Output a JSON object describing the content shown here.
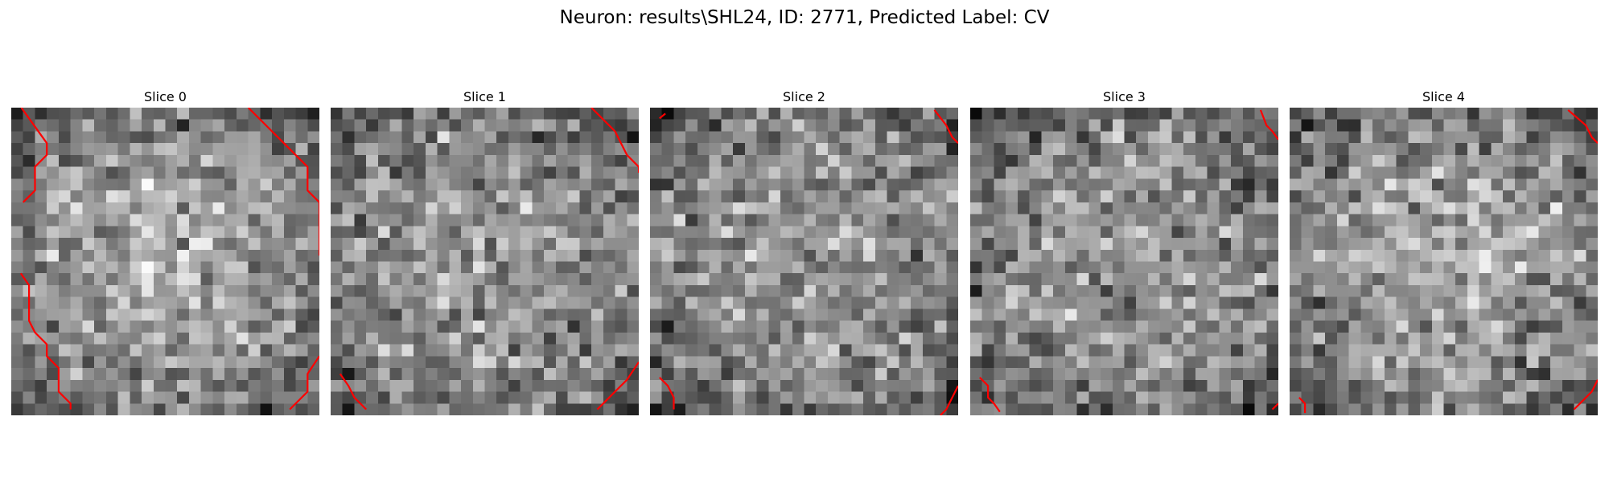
{
  "figure": {
    "title": "Neuron: results\\SHL24, ID: 2771, Predicted Label: CV"
  },
  "slices": [
    {
      "title": "Slice 0",
      "grid": 26,
      "brightness": "bright-center",
      "seed": 11,
      "contours": [
        [
          [
            0.35,
            -0.5
          ],
          [
            2.5,
            2.5
          ],
          [
            2.5,
            3.5
          ],
          [
            1.5,
            4.5
          ],
          [
            1.5,
            6.5
          ],
          [
            0.5,
            7.5
          ],
          [
            0.5,
            7.5
          ]
        ],
        [
          [
            19.5,
            -0.5
          ],
          [
            21.5,
            1.5
          ],
          [
            22.5,
            2.5
          ],
          [
            23.5,
            3.5
          ],
          [
            24.5,
            4.5
          ],
          [
            24.5,
            5.5
          ],
          [
            24.5,
            6.5
          ],
          [
            25.5,
            7.5
          ],
          [
            25.5,
            11.5
          ],
          [
            26.0,
            12.0
          ]
        ],
        [
          [
            0.3,
            13.5
          ],
          [
            1.0,
            14.5
          ],
          [
            1.0,
            17.5
          ],
          [
            1.5,
            18.5
          ],
          [
            2.5,
            19.5
          ],
          [
            2.5,
            20.5
          ],
          [
            3.5,
            21.5
          ],
          [
            3.5,
            23.5
          ],
          [
            4.5,
            24.5
          ],
          [
            4.5,
            25.0
          ]
        ],
        [
          [
            25.5,
            20.5
          ],
          [
            24.5,
            22.0
          ],
          [
            24.5,
            23.5
          ],
          [
            23.0,
            25.0
          ]
        ]
      ]
    },
    {
      "title": "Slice 1",
      "grid": 26,
      "brightness": "uniform",
      "seed": 23,
      "contours": [
        [
          [
            21.5,
            -0.5
          ],
          [
            23.5,
            1.5
          ],
          [
            24.0,
            2.5
          ],
          [
            24.5,
            3.5
          ],
          [
            25.5,
            4.5
          ],
          [
            26.0,
            5.0
          ]
        ],
        [
          [
            0.3,
            22.0
          ],
          [
            1.0,
            23.0
          ],
          [
            1.5,
            24.0
          ],
          [
            2.5,
            25.0
          ]
        ],
        [
          [
            26.0,
            21.0
          ],
          [
            24.5,
            22.5
          ],
          [
            23.5,
            23.5
          ],
          [
            22.5,
            24.5
          ],
          [
            22.0,
            25.0
          ]
        ]
      ]
    },
    {
      "title": "Slice 2",
      "grid": 26,
      "brightness": "uniform",
      "seed": 37,
      "contours": [
        [
          [
            23.5,
            -0.3
          ],
          [
            24.5,
            1.0
          ],
          [
            25.0,
            2.0
          ],
          [
            25.5,
            2.5
          ]
        ],
        [
          [
            0.3,
            0.4
          ],
          [
            0.8,
            0.0
          ]
        ],
        [
          [
            0.3,
            22.3
          ],
          [
            1.0,
            23.0
          ],
          [
            1.5,
            24.0
          ],
          [
            1.5,
            25.0
          ]
        ],
        [
          [
            25.5,
            23.0
          ],
          [
            25.0,
            24.0
          ],
          [
            24.5,
            25.0
          ],
          [
            24.0,
            25.5
          ]
        ]
      ]
    },
    {
      "title": "Slice 3",
      "grid": 26,
      "brightness": "uniform",
      "seed": 53,
      "contours": [
        [
          [
            24.0,
            -0.3
          ],
          [
            24.5,
            1.0
          ],
          [
            25.0,
            1.5
          ],
          [
            25.5,
            2.2
          ]
        ],
        [
          [
            0.3,
            22.3
          ],
          [
            1.0,
            23.0
          ],
          [
            1.0,
            24.0
          ],
          [
            1.5,
            24.5
          ],
          [
            2.0,
            25.2
          ]
        ],
        [
          [
            25.0,
            25.0
          ],
          [
            25.5,
            24.5
          ]
        ]
      ]
    },
    {
      "title": "Slice 4",
      "grid": 26,
      "brightness": "bright-center",
      "seed": 71,
      "contours": [
        [
          [
            23.0,
            -0.3
          ],
          [
            24.5,
            1.0
          ],
          [
            25.0,
            2.0
          ],
          [
            25.5,
            2.5
          ]
        ],
        [
          [
            0.3,
            24.0
          ],
          [
            0.8,
            24.5
          ],
          [
            0.8,
            25.3
          ]
        ],
        [
          [
            26.0,
            22.5
          ],
          [
            25.0,
            23.5
          ],
          [
            24.0,
            24.5
          ],
          [
            23.5,
            25.0
          ]
        ]
      ]
    }
  ],
  "colors": {
    "background": "#ffffff",
    "contour": "#ff0000",
    "text": "#000000"
  }
}
